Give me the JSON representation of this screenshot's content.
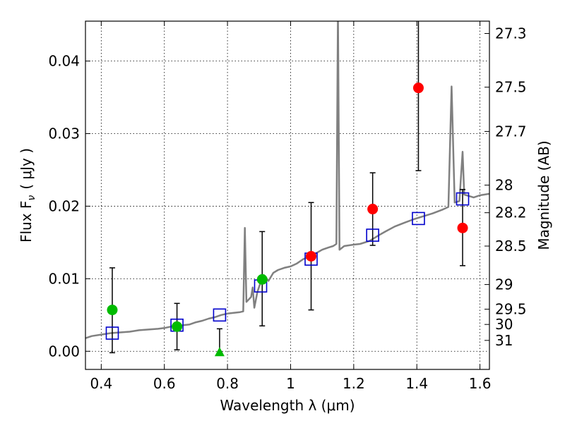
{
  "chart_data": {
    "type": "scatter",
    "xlabel": "Wavelength  λ (μm)",
    "ylabel": "Flux  F",
    "ylabel_subscript": "ν",
    "ylabel_unit": "( μJy )",
    "y2label": "Magnitude (AB)",
    "xlim": [
      0.35,
      1.63
    ],
    "ylim": [
      -0.0025,
      0.0455
    ],
    "grid": true,
    "x_ticks": [
      0.4,
      0.6,
      0.8,
      1.0,
      1.2,
      1.4,
      1.6
    ],
    "x_tick_labels": [
      "0.4",
      "0.6",
      "0.8",
      "1",
      "1.2",
      "1.4",
      "1.6"
    ],
    "y_ticks": [
      0.0,
      0.01,
      0.02,
      0.03,
      0.04
    ],
    "y_tick_labels": [
      "0.00",
      "0.01",
      "0.02",
      "0.03",
      "0.04"
    ],
    "mag_ticks": [
      {
        "label": "27.3",
        "flux": 0.0438
      },
      {
        "label": "27.5",
        "flux": 0.0364
      },
      {
        "label": "27.7",
        "flux": 0.0303
      },
      {
        "label": "28",
        "flux": 0.0229
      },
      {
        "label": "28.2",
        "flux": 0.0191
      },
      {
        "label": "28.5",
        "flux": 0.0145
      },
      {
        "label": "29",
        "flux": 0.0092
      },
      {
        "label": "29.5",
        "flux": 0.0058
      },
      {
        "label": "30",
        "flux": 0.0037
      },
      {
        "label": "31",
        "flux": 0.0015
      }
    ],
    "series": [
      {
        "kind": "line",
        "color": "#808080",
        "points": [
          [
            0.35,
            0.0018
          ],
          [
            0.37,
            0.0021
          ],
          [
            0.4,
            0.0023
          ],
          [
            0.43,
            0.0025
          ],
          [
            0.46,
            0.0026
          ],
          [
            0.49,
            0.0027
          ],
          [
            0.52,
            0.0029
          ],
          [
            0.55,
            0.003
          ],
          [
            0.58,
            0.0031
          ],
          [
            0.6,
            0.0032
          ],
          [
            0.62,
            0.0034
          ],
          [
            0.64,
            0.0035
          ],
          [
            0.66,
            0.0036
          ],
          [
            0.68,
            0.0037
          ],
          [
            0.7,
            0.004
          ],
          [
            0.72,
            0.0042
          ],
          [
            0.74,
            0.0045
          ],
          [
            0.76,
            0.0047
          ],
          [
            0.78,
            0.005
          ],
          [
            0.8,
            0.0052
          ],
          [
            0.82,
            0.0053
          ],
          [
            0.84,
            0.0054
          ],
          [
            0.85,
            0.0055
          ],
          [
            0.855,
            0.017
          ],
          [
            0.86,
            0.0068
          ],
          [
            0.875,
            0.0075
          ],
          [
            0.88,
            0.0088
          ],
          [
            0.885,
            0.006
          ],
          [
            0.895,
            0.0082
          ],
          [
            0.905,
            0.0095
          ],
          [
            0.915,
            0.0105
          ],
          [
            0.93,
            0.0097
          ],
          [
            0.945,
            0.0108
          ],
          [
            0.96,
            0.0112
          ],
          [
            0.98,
            0.0115
          ],
          [
            1.0,
            0.0117
          ],
          [
            1.02,
            0.0121
          ],
          [
            1.04,
            0.0127
          ],
          [
            1.06,
            0.013
          ],
          [
            1.08,
            0.0135
          ],
          [
            1.1,
            0.014
          ],
          [
            1.12,
            0.0143
          ],
          [
            1.135,
            0.0145
          ],
          [
            1.145,
            0.0148
          ],
          [
            1.15,
            0.047
          ],
          [
            1.155,
            0.014
          ],
          [
            1.17,
            0.0145
          ],
          [
            1.2,
            0.0147
          ],
          [
            1.22,
            0.0148
          ],
          [
            1.25,
            0.0152
          ],
          [
            1.28,
            0.016
          ],
          [
            1.3,
            0.0165
          ],
          [
            1.33,
            0.0172
          ],
          [
            1.36,
            0.0177
          ],
          [
            1.39,
            0.0182
          ],
          [
            1.42,
            0.0186
          ],
          [
            1.45,
            0.019
          ],
          [
            1.48,
            0.0195
          ],
          [
            1.5,
            0.0199
          ],
          [
            1.51,
            0.0365
          ],
          [
            1.52,
            0.0205
          ],
          [
            1.535,
            0.0207
          ],
          [
            1.545,
            0.0275
          ],
          [
            1.55,
            0.0216
          ],
          [
            1.58,
            0.0212
          ],
          [
            1.6,
            0.0215
          ],
          [
            1.63,
            0.0217
          ]
        ]
      },
      {
        "kind": "open_squares",
        "color": "#0000cc",
        "points": [
          [
            0.435,
            0.0025
          ],
          [
            0.64,
            0.0036
          ],
          [
            0.775,
            0.005
          ],
          [
            0.905,
            0.009
          ],
          [
            1.065,
            0.0127
          ],
          [
            1.26,
            0.016
          ],
          [
            1.405,
            0.0183
          ],
          [
            1.545,
            0.021
          ]
        ]
      },
      {
        "kind": "filled_circles",
        "color": "#00bb00",
        "points": [
          [
            0.435,
            0.0057
          ],
          [
            0.64,
            0.0034
          ],
          [
            0.91,
            0.0099
          ]
        ]
      },
      {
        "kind": "upper_limit_triangle",
        "color": "#00bb00",
        "points": [
          [
            0.775,
            -0.0001
          ]
        ]
      },
      {
        "kind": "filled_circles",
        "color": "#ff0000",
        "points": [
          [
            1.065,
            0.0131
          ],
          [
            1.26,
            0.0196
          ],
          [
            1.405,
            0.0363
          ],
          [
            1.545,
            0.017
          ]
        ]
      }
    ],
    "error_bars": [
      {
        "x": 0.435,
        "lo": -0.0002,
        "hi": 0.0115
      },
      {
        "x": 0.64,
        "lo": 0.0002,
        "hi": 0.0066
      },
      {
        "x": 0.775,
        "lo": -0.0001,
        "hi": 0.0031
      },
      {
        "x": 0.91,
        "lo": 0.0035,
        "hi": 0.0165
      },
      {
        "x": 1.065,
        "lo": 0.0057,
        "hi": 0.0205
      },
      {
        "x": 1.26,
        "lo": 0.0146,
        "hi": 0.0246
      },
      {
        "x": 1.405,
        "lo": 0.0249,
        "hi": 0.0465
      },
      {
        "x": 1.545,
        "lo": 0.0118,
        "hi": 0.0223
      }
    ]
  }
}
